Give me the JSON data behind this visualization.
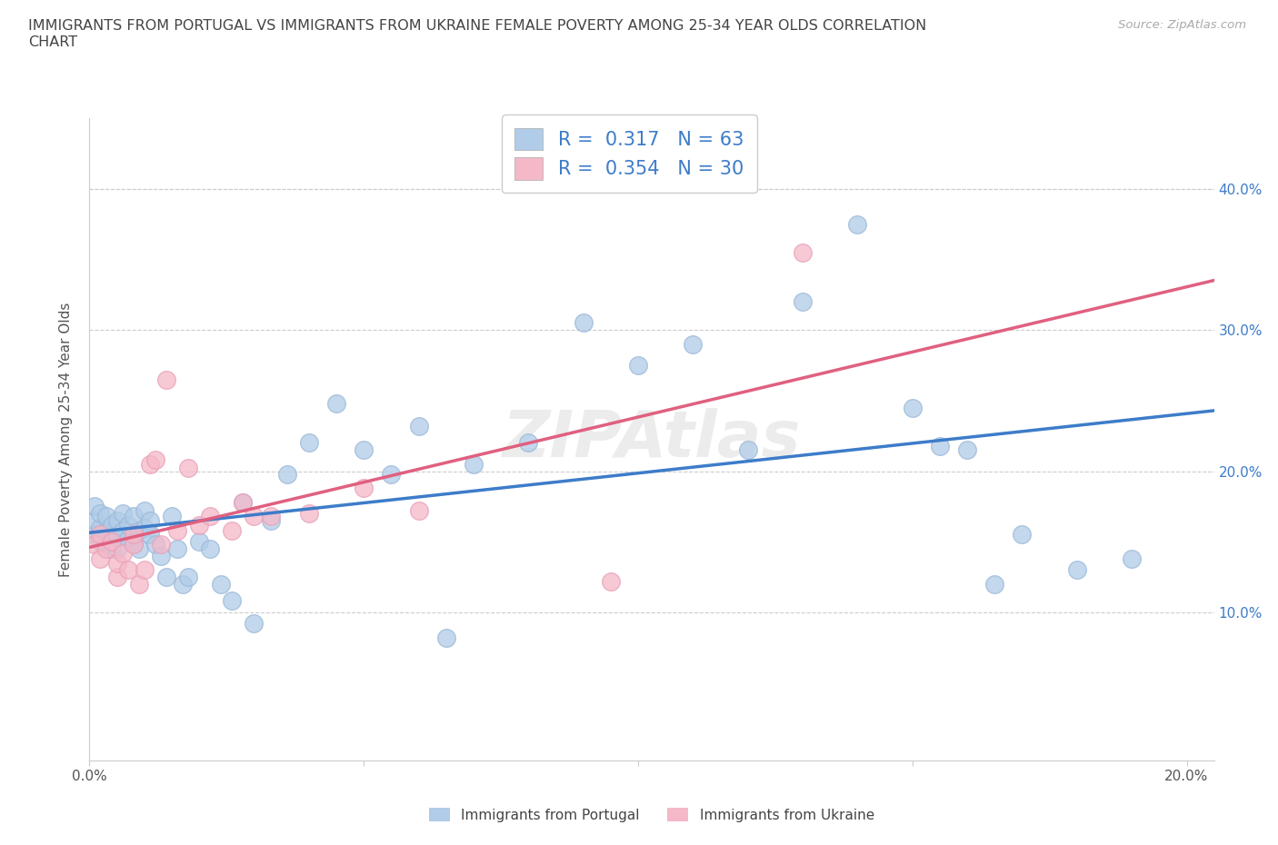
{
  "title_line1": "IMMIGRANTS FROM PORTUGAL VS IMMIGRANTS FROM UKRAINE FEMALE POVERTY AMONG 25-34 YEAR OLDS CORRELATION",
  "title_line2": "CHART",
  "source_text": "Source: ZipAtlas.com",
  "ylabel": "Female Poverty Among 25-34 Year Olds",
  "xlim": [
    0.0,
    0.205
  ],
  "ylim": [
    -0.005,
    0.45
  ],
  "x_ticks": [
    0.0,
    0.05,
    0.1,
    0.15,
    0.2
  ],
  "x_tick_labels": [
    "0.0%",
    "",
    "",
    "",
    "20.0%"
  ],
  "y_ticks": [
    0.0,
    0.1,
    0.2,
    0.3,
    0.4
  ],
  "y_tick_labels_right": [
    "",
    "10.0%",
    "20.0%",
    "30.0%",
    "40.0%"
  ],
  "portugal_fill": "#b0cce8",
  "ukraine_fill": "#f5b8c8",
  "portugal_edge": "#9ab8d8",
  "ukraine_edge": "#e8a0b8",
  "portugal_line": "#3d7cc9",
  "ukraine_line": "#e06080",
  "legend_text_color": "#3d7cc9",
  "R_portugal": "0.317",
  "N_portugal": "63",
  "R_ukraine": "0.354",
  "N_ukraine": "30",
  "watermark": "ZIPAtlas",
  "bg_color": "#ffffff",
  "grid_color": "#cccccc",
  "title_color": "#444444",
  "source_color": "#aaaaaa",
  "portugal_x": [
    0.001,
    0.001,
    0.001,
    0.002,
    0.002,
    0.002,
    0.003,
    0.003,
    0.003,
    0.004,
    0.004,
    0.004,
    0.005,
    0.005,
    0.005,
    0.006,
    0.006,
    0.007,
    0.007,
    0.008,
    0.008,
    0.009,
    0.009,
    0.01,
    0.01,
    0.011,
    0.011,
    0.012,
    0.013,
    0.014,
    0.015,
    0.016,
    0.017,
    0.018,
    0.02,
    0.022,
    0.024,
    0.026,
    0.028,
    0.03,
    0.033,
    0.036,
    0.04,
    0.045,
    0.05,
    0.055,
    0.06,
    0.065,
    0.07,
    0.08,
    0.09,
    0.1,
    0.11,
    0.12,
    0.13,
    0.14,
    0.15,
    0.155,
    0.16,
    0.165,
    0.17,
    0.18,
    0.19
  ],
  "portugal_y": [
    0.155,
    0.165,
    0.175,
    0.15,
    0.16,
    0.17,
    0.148,
    0.158,
    0.168,
    0.152,
    0.162,
    0.145,
    0.155,
    0.165,
    0.145,
    0.158,
    0.17,
    0.152,
    0.162,
    0.148,
    0.168,
    0.158,
    0.145,
    0.16,
    0.172,
    0.165,
    0.155,
    0.148,
    0.14,
    0.125,
    0.168,
    0.145,
    0.12,
    0.125,
    0.15,
    0.145,
    0.12,
    0.108,
    0.178,
    0.092,
    0.165,
    0.198,
    0.22,
    0.248,
    0.215,
    0.198,
    0.232,
    0.082,
    0.205,
    0.22,
    0.305,
    0.275,
    0.29,
    0.215,
    0.32,
    0.375,
    0.245,
    0.218,
    0.215,
    0.12,
    0.155,
    0.13,
    0.138
  ],
  "ukraine_x": [
    0.001,
    0.002,
    0.002,
    0.003,
    0.004,
    0.005,
    0.005,
    0.006,
    0.007,
    0.008,
    0.008,
    0.009,
    0.01,
    0.011,
    0.012,
    0.013,
    0.014,
    0.016,
    0.018,
    0.02,
    0.022,
    0.026,
    0.028,
    0.03,
    0.033,
    0.04,
    0.05,
    0.06,
    0.095,
    0.13
  ],
  "ukraine_y": [
    0.148,
    0.138,
    0.155,
    0.145,
    0.15,
    0.125,
    0.135,
    0.142,
    0.13,
    0.148,
    0.155,
    0.12,
    0.13,
    0.205,
    0.208,
    0.148,
    0.265,
    0.158,
    0.202,
    0.162,
    0.168,
    0.158,
    0.178,
    0.168,
    0.168,
    0.17,
    0.188,
    0.172,
    0.122,
    0.355
  ]
}
